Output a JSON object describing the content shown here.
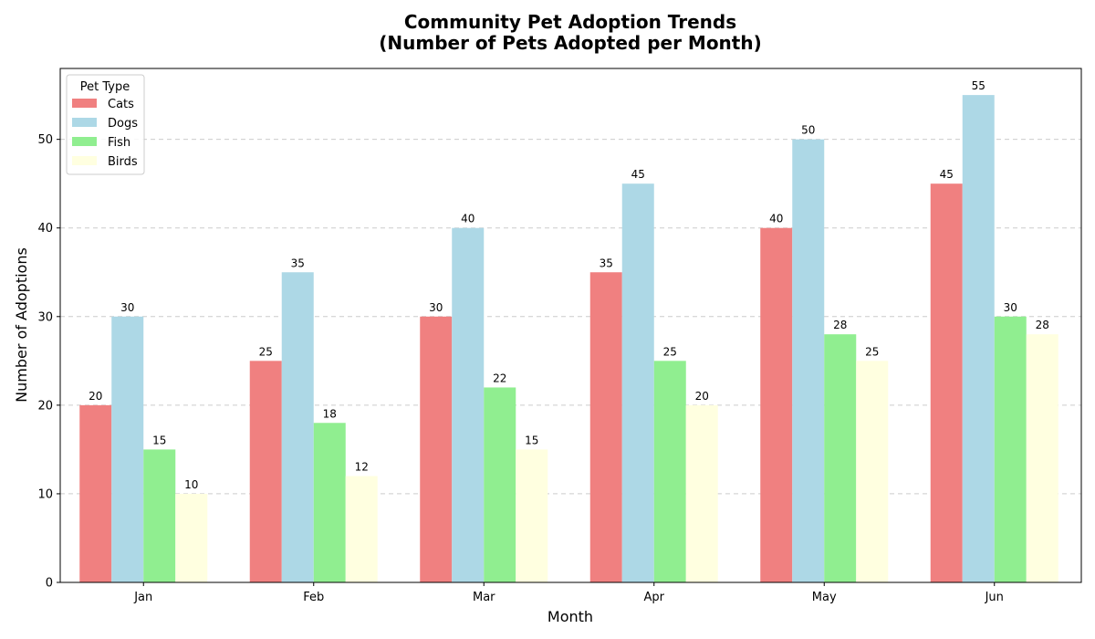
{
  "chart_data": {
    "type": "bar",
    "title_lines": [
      "Community Pet Adoption Trends",
      "(Number of Pets Adopted per Month)"
    ],
    "xlabel": "Month",
    "ylabel": "Number of Adoptions",
    "categories": [
      "Jan",
      "Feb",
      "Mar",
      "Apr",
      "May",
      "Jun"
    ],
    "ylim": [
      0,
      58
    ],
    "yticks": [
      0,
      10,
      20,
      30,
      40,
      50
    ],
    "grid": "y-dashed",
    "legend": {
      "title": "Pet Type",
      "placement": "top-left"
    },
    "series": [
      {
        "name": "Cats",
        "color": "#f08080",
        "values": [
          20,
          25,
          30,
          35,
          40,
          45
        ]
      },
      {
        "name": "Dogs",
        "color": "#add8e6",
        "values": [
          30,
          35,
          40,
          45,
          50,
          55
        ]
      },
      {
        "name": "Fish",
        "color": "#90ee90",
        "values": [
          15,
          18,
          22,
          25,
          28,
          30
        ]
      },
      {
        "name": "Birds",
        "color": "#ffffe0",
        "values": [
          10,
          12,
          15,
          20,
          25,
          28
        ]
      }
    ]
  }
}
